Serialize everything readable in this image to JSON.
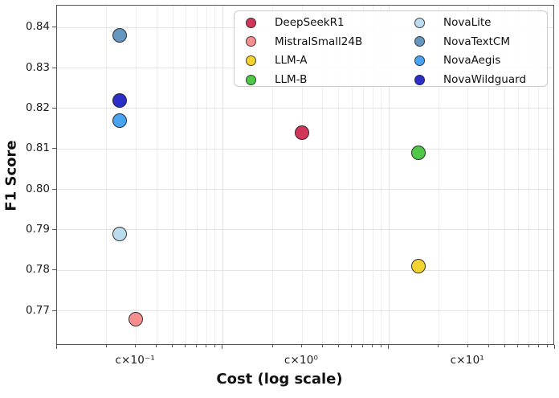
{
  "chart_data": {
    "type": "scatter",
    "title": "",
    "xlabel": "Cost (log scale)",
    "ylabel": "F1 Score",
    "x_scale": "log",
    "x_unit": "cost expressed as multiples of an unknown constant c",
    "x_range_axis_values": [
      1,
      1000
    ],
    "x_tick_labels": [
      {
        "label": "c×10⁻¹",
        "cost_multiple_of_c": 0.1,
        "axis_value": 3
      },
      {
        "label": "c×10⁰",
        "cost_multiple_of_c": 1,
        "axis_value": 30
      },
      {
        "label": "c×10¹",
        "cost_multiple_of_c": 10,
        "axis_value": 300
      }
    ],
    "y_ticks": [
      "0.77",
      "0.78",
      "0.79",
      "0.80",
      "0.81",
      "0.82",
      "0.83",
      "0.84"
    ],
    "y_range": [
      0.7615,
      0.8455
    ],
    "grid": "major and minor vertical log gridlines, major horizontal gridlines, light gray",
    "legend_position": "upper right, 2 columns",
    "series": [
      {
        "name": "DeepSeekR1",
        "color": "#d2355a",
        "cost_x_c": 1.0,
        "axis_x": 30,
        "f1": 0.814
      },
      {
        "name": "MistralSmall24B",
        "color": "#f58f90",
        "cost_x_c": 0.1,
        "axis_x": 3,
        "f1": 0.768
      },
      {
        "name": "LLM-A",
        "color": "#f2d32f",
        "cost_x_c": 5.0,
        "axis_x": 150,
        "f1": 0.781
      },
      {
        "name": "LLM-B",
        "color": "#4fc748",
        "cost_x_c": 5.0,
        "axis_x": 150,
        "f1": 0.809
      },
      {
        "name": "NovaLite",
        "color": "#badcee",
        "cost_x_c": 0.08,
        "axis_x": 2.4,
        "f1": 0.789
      },
      {
        "name": "NovaTextCM",
        "color": "#6596bf",
        "cost_x_c": 0.08,
        "axis_x": 2.4,
        "f1": 0.838
      },
      {
        "name": "NovaAegis",
        "color": "#48a4f0",
        "cost_x_c": 0.08,
        "axis_x": 2.4,
        "f1": 0.817
      },
      {
        "name": "NovaWildguard",
        "color": "#2b2ec8",
        "cost_x_c": 0.08,
        "axis_x": 2.4,
        "f1": 0.822
      }
    ],
    "legend_columns": [
      [
        "DeepSeekR1",
        "MistralSmall24B",
        "LLM-A",
        "LLM-B"
      ],
      [
        "NovaLite",
        "NovaTextCM",
        "NovaAegis",
        "NovaWildguard"
      ]
    ]
  }
}
